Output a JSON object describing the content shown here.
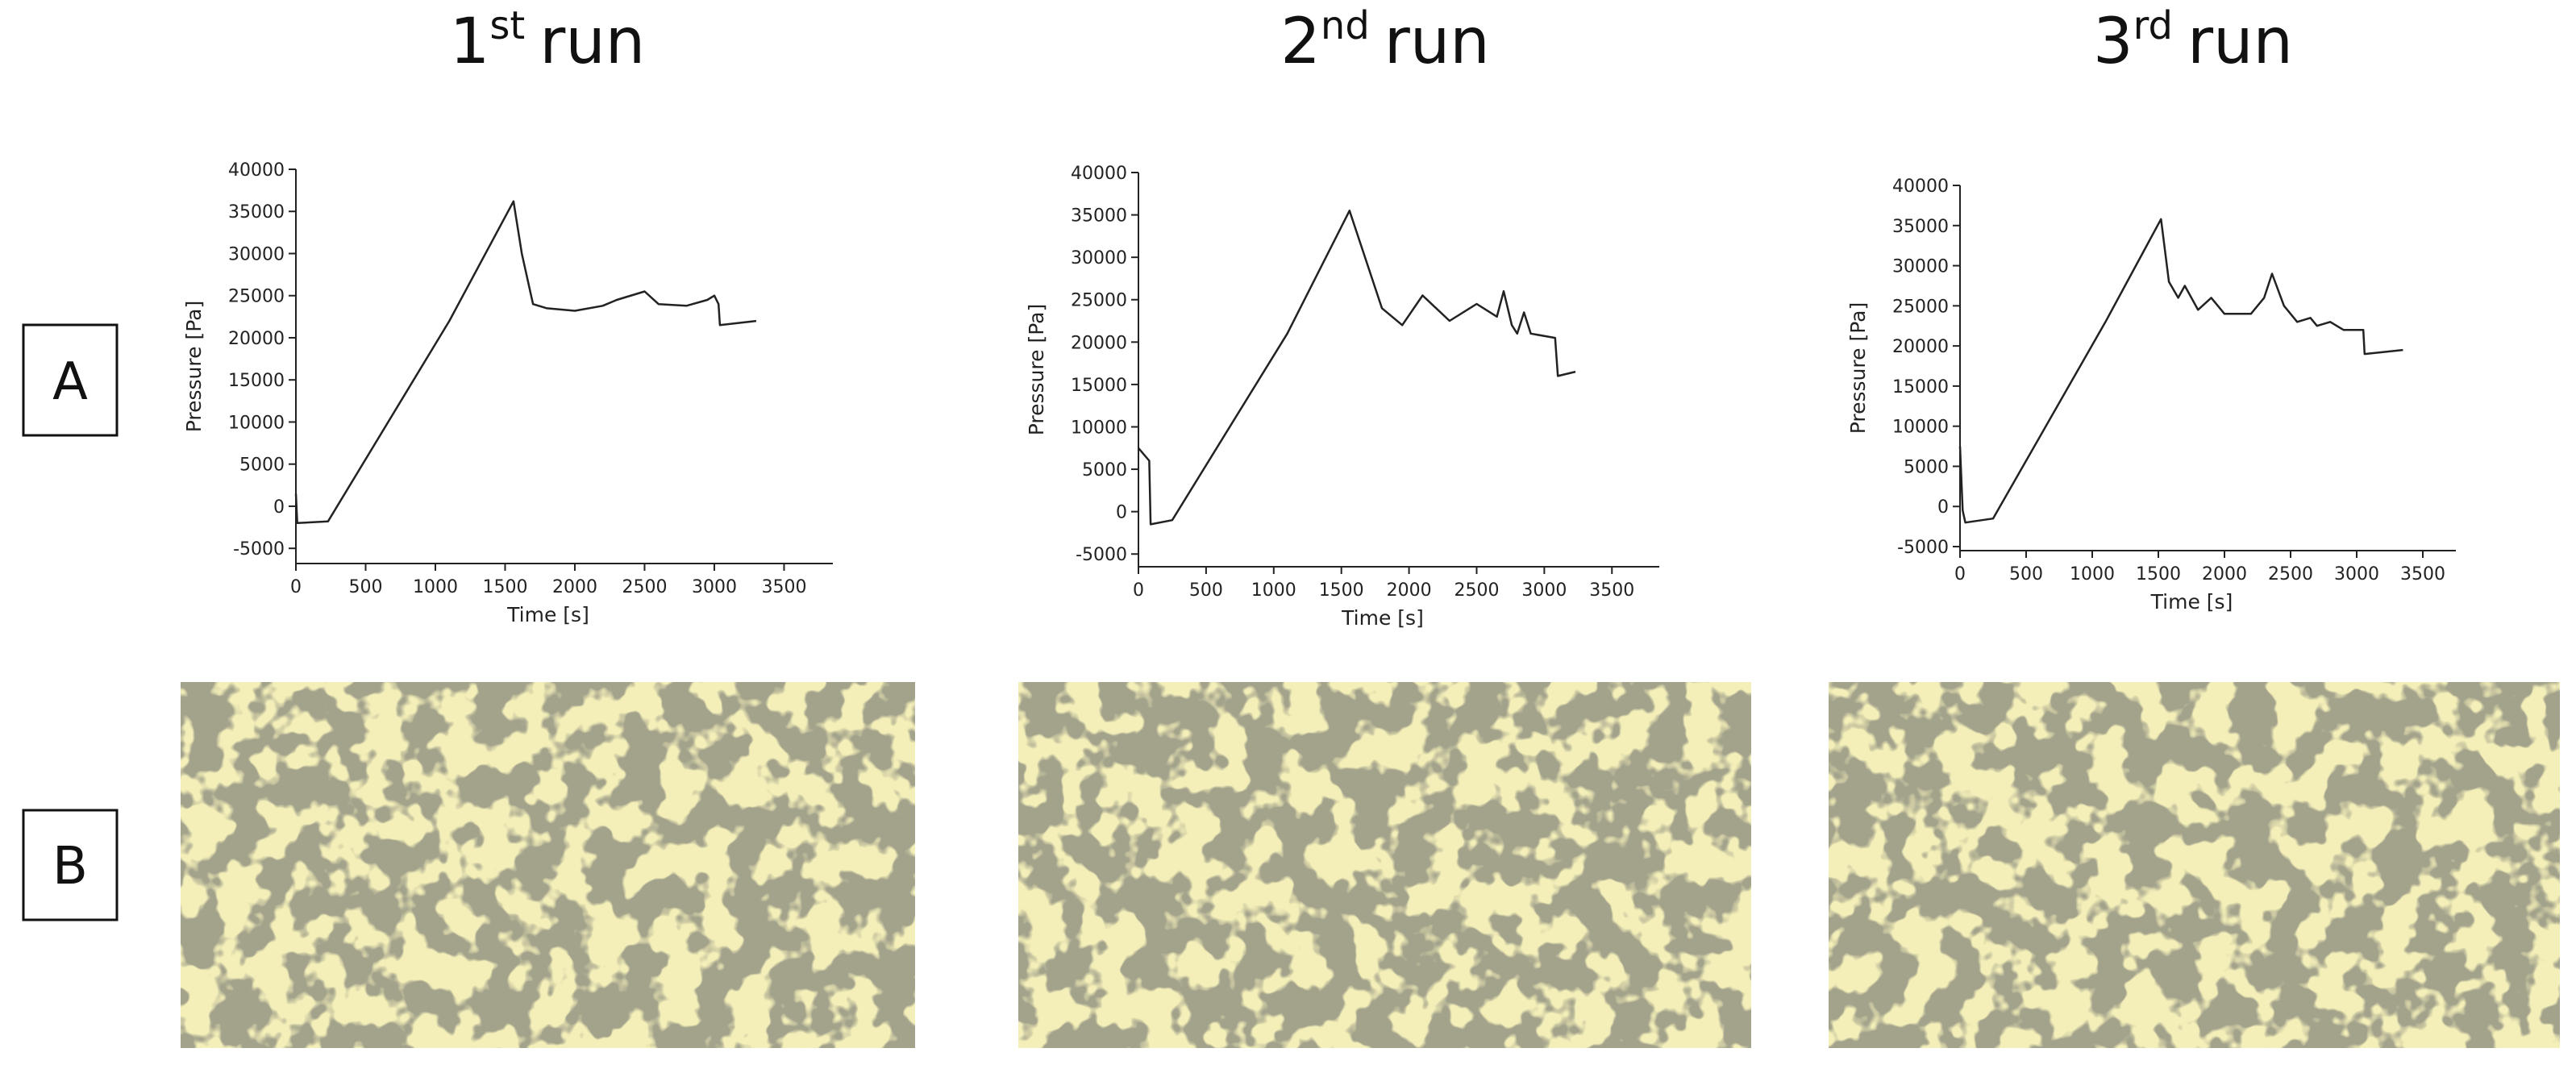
{
  "row_labels": [
    "A",
    "B"
  ],
  "chart_data": [
    {
      "type": "line",
      "title": [
        "1",
        "st",
        "run"
      ],
      "x_label": "Time [s]",
      "y_label": "Pressure [Pa]",
      "xlim": [
        0,
        3850
      ],
      "ylim": [
        -6800,
        40000
      ],
      "xticks": [
        0,
        500,
        1000,
        1500,
        2000,
        2500,
        3000,
        3500
      ],
      "yticks": [
        -5000,
        0,
        5000,
        10000,
        15000,
        20000,
        25000,
        30000,
        35000,
        40000
      ],
      "x": [
        0,
        10,
        230,
        1100,
        1560,
        1620,
        1700,
        1800,
        2000,
        2200,
        2300,
        2500,
        2600,
        2800,
        2950,
        3000,
        3030,
        3040,
        3300
      ],
      "series": [
        {
          "color": "#222222",
          "values": [
            1500,
            -2000,
            -1800,
            22000,
            36200,
            30000,
            24000,
            23500,
            23200,
            23800,
            24500,
            25500,
            24000,
            23800,
            24500,
            25000,
            24000,
            21500,
            22000
          ]
        }
      ]
    },
    {
      "type": "line",
      "title": [
        "2",
        "nd",
        "run"
      ],
      "x_label": "Time [s]",
      "y_label": "Pressure [Pa]",
      "xlim": [
        0,
        3850
      ],
      "ylim": [
        -6500,
        40000
      ],
      "xticks": [
        0,
        500,
        1000,
        1500,
        2000,
        2500,
        3000,
        3500
      ],
      "yticks": [
        -5000,
        0,
        5000,
        10000,
        15000,
        20000,
        25000,
        30000,
        35000,
        40000
      ],
      "x": [
        0,
        80,
        90,
        250,
        1100,
        1560,
        1800,
        1950,
        2100,
        2300,
        2500,
        2650,
        2700,
        2760,
        2800,
        2850,
        2900,
        3080,
        3100,
        3230
      ],
      "series": [
        {
          "color": "#222222",
          "values": [
            7500,
            6000,
            -1500,
            -1000,
            21000,
            35500,
            24000,
            22000,
            25500,
            22500,
            24500,
            23000,
            26000,
            22000,
            21000,
            23500,
            21000,
            20500,
            16000,
            16500
          ]
        }
      ]
    },
    {
      "type": "line",
      "title": [
        "3",
        "rd",
        "run"
      ],
      "x_label": "Time [s]",
      "y_label": "Pressure [Pa]",
      "xlim": [
        0,
        3750
      ],
      "ylim": [
        -5500,
        40000
      ],
      "xticks": [
        0,
        500,
        1000,
        1500,
        2000,
        2500,
        3000,
        3500
      ],
      "yticks": [
        -5000,
        0,
        5000,
        10000,
        15000,
        20000,
        25000,
        30000,
        35000,
        40000
      ],
      "x": [
        0,
        20,
        40,
        250,
        1100,
        1520,
        1580,
        1650,
        1700,
        1800,
        1900,
        2000,
        2200,
        2300,
        2360,
        2450,
        2550,
        2650,
        2700,
        2800,
        2900,
        3050,
        3060,
        3350
      ],
      "series": [
        {
          "color": "#222222",
          "values": [
            7500,
            -500,
            -2000,
            -1500,
            23000,
            35800,
            28000,
            26000,
            27500,
            24500,
            26000,
            24000,
            24000,
            26000,
            29000,
            25000,
            23000,
            23500,
            22500,
            23000,
            22000,
            22000,
            19000,
            19500
          ]
        }
      ]
    }
  ]
}
